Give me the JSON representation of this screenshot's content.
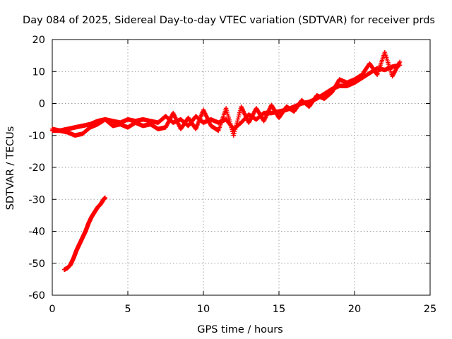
{
  "chart_data": {
    "type": "scatter",
    "title": "Day 084 of 2025, Sidereal Day-to-day VTEC variation (SDTVAR) for receiver prds",
    "xlabel": "GPS time / hours",
    "ylabel": "SDTVAR / TECUs",
    "xlim": [
      0,
      25
    ],
    "ylim": [
      -60,
      20
    ],
    "xticks": [
      0,
      5,
      10,
      15,
      20,
      25
    ],
    "yticks": [
      -60,
      -50,
      -40,
      -30,
      -20,
      -10,
      0,
      10,
      20
    ],
    "grid": true,
    "marker": "+",
    "color": "#ff0000",
    "series": [
      {
        "name": "main track",
        "points": [
          [
            0,
            -8.5
          ],
          [
            0.5,
            -8.5
          ],
          [
            1.0,
            -8.0
          ],
          [
            1.5,
            -7.5
          ],
          [
            2.0,
            -7.0
          ],
          [
            2.5,
            -6.5
          ],
          [
            3.0,
            -5.5
          ],
          [
            3.5,
            -5.0
          ],
          [
            4.0,
            -5.5
          ],
          [
            4.5,
            -6.0
          ],
          [
            5.0,
            -5.0
          ],
          [
            5.5,
            -5.5
          ],
          [
            6.0,
            -5.0
          ],
          [
            6.5,
            -5.5
          ],
          [
            7.0,
            -6.0
          ],
          [
            7.5,
            -4.0
          ],
          [
            8.0,
            -6.0
          ],
          [
            8.5,
            -5.0
          ],
          [
            9.0,
            -7.0
          ],
          [
            9.5,
            -4.0
          ],
          [
            10.0,
            -6.0
          ],
          [
            10.5,
            -5.0
          ],
          [
            11.0,
            -6.0
          ],
          [
            11.5,
            -5.0
          ],
          [
            12.0,
            -8.0
          ],
          [
            12.5,
            -6.0
          ],
          [
            13.0,
            -3.5
          ],
          [
            13.5,
            -5.0
          ],
          [
            14.0,
            -3.0
          ],
          [
            14.5,
            -3.0
          ],
          [
            15.0,
            -2.5
          ],
          [
            15.5,
            -2.0
          ],
          [
            16.0,
            -1.0
          ],
          [
            16.5,
            0.0
          ],
          [
            17.0,
            0.5
          ],
          [
            17.5,
            1.5
          ],
          [
            18.0,
            3.0
          ],
          [
            18.5,
            4.5
          ],
          [
            19.0,
            5.5
          ],
          [
            19.5,
            5.5
          ],
          [
            20.0,
            6.5
          ],
          [
            20.5,
            8.0
          ],
          [
            21.0,
            9.5
          ],
          [
            21.5,
            11.0
          ],
          [
            22.0,
            10.5
          ],
          [
            22.5,
            11.5
          ],
          [
            23.0,
            12.0
          ]
        ]
      },
      {
        "name": "secondary track",
        "points": [
          [
            0,
            -8.0
          ],
          [
            0.5,
            -8.5
          ],
          [
            1.0,
            -9.0
          ],
          [
            1.5,
            -10.0
          ],
          [
            2.0,
            -9.5
          ],
          [
            2.5,
            -7.5
          ],
          [
            3.0,
            -6.5
          ],
          [
            3.5,
            -5.0
          ],
          [
            4.0,
            -7.0
          ],
          [
            4.5,
            -6.5
          ],
          [
            5.0,
            -7.5
          ],
          [
            5.5,
            -6.0
          ],
          [
            6.0,
            -7.0
          ],
          [
            6.5,
            -6.5
          ],
          [
            7.0,
            -8.0
          ],
          [
            7.5,
            -7.5
          ],
          [
            8.0,
            -3.0
          ],
          [
            8.5,
            -8.0
          ],
          [
            9.0,
            -4.5
          ],
          [
            9.5,
            -8.0
          ],
          [
            10.0,
            -2.0
          ],
          [
            10.5,
            -7.0
          ],
          [
            11.0,
            -8.5
          ],
          [
            11.5,
            -1.5
          ],
          [
            12.0,
            -10.0
          ],
          [
            12.5,
            -1.0
          ],
          [
            13.0,
            -6.0
          ],
          [
            13.5,
            -1.5
          ],
          [
            14.0,
            -5.5
          ],
          [
            14.5,
            -0.5
          ],
          [
            15.0,
            -4.5
          ],
          [
            15.5,
            -1.0
          ],
          [
            16.0,
            -2.5
          ],
          [
            16.5,
            1.0
          ],
          [
            17.0,
            -1.0
          ],
          [
            17.5,
            2.5
          ],
          [
            18.0,
            1.5
          ],
          [
            18.5,
            3.5
          ],
          [
            19.0,
            7.5
          ],
          [
            19.5,
            6.5
          ],
          [
            20.0,
            7.5
          ],
          [
            20.5,
            9.0
          ],
          [
            21.0,
            12.5
          ],
          [
            21.5,
            9.0
          ],
          [
            22.0,
            16.0
          ],
          [
            22.5,
            8.5
          ],
          [
            23.0,
            13.0
          ]
        ]
      },
      {
        "name": "low segment",
        "points": [
          [
            0.8,
            -52.0
          ],
          [
            1.0,
            -51.5
          ],
          [
            1.2,
            -50.5
          ],
          [
            1.4,
            -48.5
          ],
          [
            1.6,
            -46.0
          ],
          [
            1.8,
            -44.0
          ],
          [
            2.0,
            -42.0
          ],
          [
            2.2,
            -40.0
          ],
          [
            2.4,
            -37.5
          ],
          [
            2.6,
            -35.5
          ],
          [
            2.8,
            -34.0
          ],
          [
            3.0,
            -32.5
          ],
          [
            3.2,
            -31.5
          ],
          [
            3.4,
            -30.0
          ],
          [
            3.5,
            -29.5
          ]
        ]
      }
    ]
  }
}
